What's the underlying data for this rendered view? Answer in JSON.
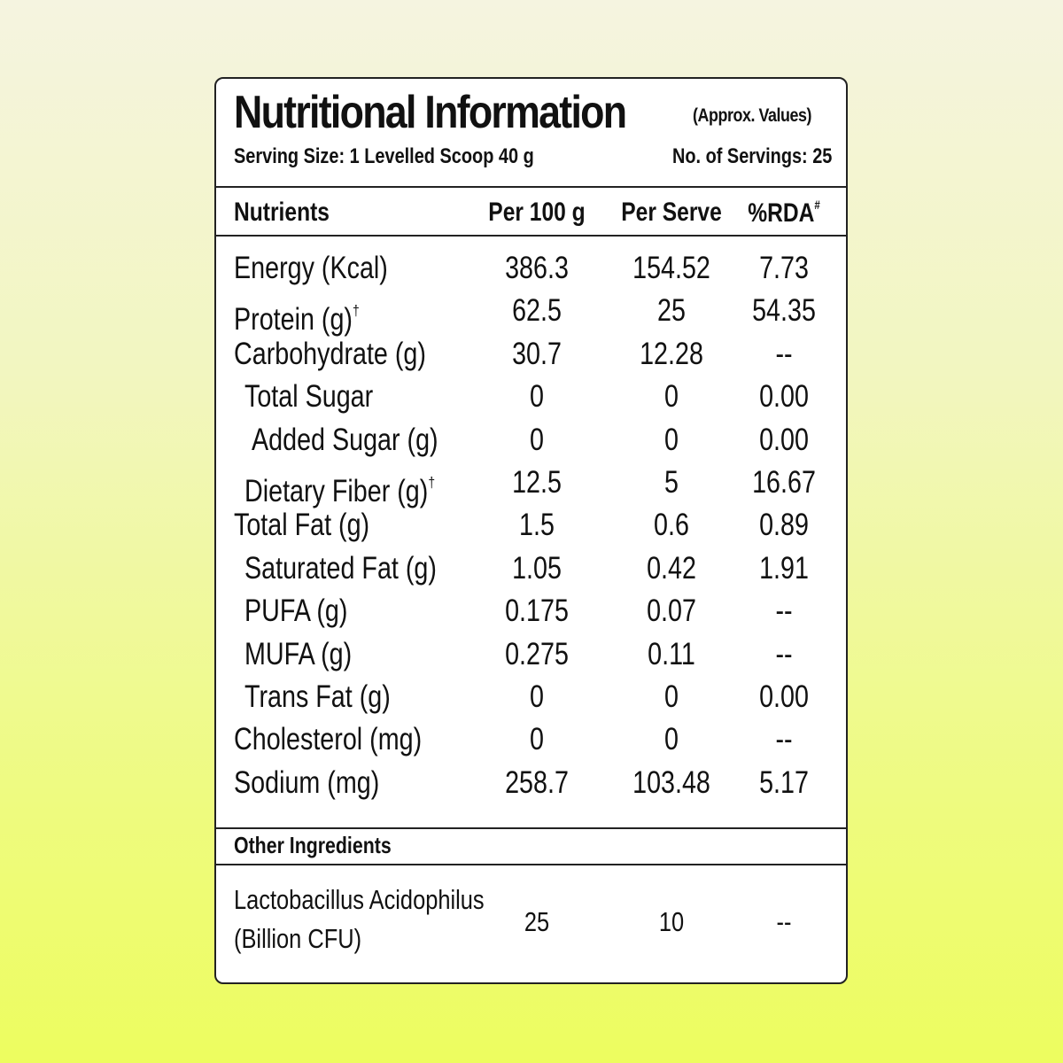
{
  "title": "Nutritional Information",
  "approx_note": "(Approx. Values)",
  "serving_size": "Serving Size: 1 Levelled Scoop 40 g",
  "servings_count": "No. of Servings: 25",
  "columns": {
    "nutrients": "Nutrients",
    "per_100g": "Per 100 g",
    "per_serve": "Per Serve",
    "rda": "%RDA",
    "rda_mark": "#"
  },
  "rows": [
    {
      "name": "Energy (Kcal)",
      "mark": "",
      "indent": 0,
      "per_100g": "386.3",
      "per_serve": "154.52",
      "rda": "7.73"
    },
    {
      "name": "Protein (g)",
      "mark": "†",
      "indent": 0,
      "per_100g": "62.5",
      "per_serve": "25",
      "rda": "54.35"
    },
    {
      "name": "Carbohydrate (g)",
      "mark": "",
      "indent": 0,
      "per_100g": "30.7",
      "per_serve": "12.28",
      "rda": "--"
    },
    {
      "name": "Total Sugar",
      "mark": "",
      "indent": 1,
      "per_100g": "0",
      "per_serve": "0",
      "rda": "0.00"
    },
    {
      "name": "Added Sugar (g)",
      "mark": "",
      "indent": 2,
      "per_100g": "0",
      "per_serve": "0",
      "rda": "0.00"
    },
    {
      "name": "Dietary Fiber (g)",
      "mark": "†",
      "indent": 1,
      "per_100g": "12.5",
      "per_serve": "5",
      "rda": "16.67"
    },
    {
      "name": "Total Fat (g)",
      "mark": "",
      "indent": 0,
      "per_100g": "1.5",
      "per_serve": "0.6",
      "rda": "0.89"
    },
    {
      "name": "Saturated Fat (g)",
      "mark": "",
      "indent": 1,
      "per_100g": "1.05",
      "per_serve": "0.42",
      "rda": "1.91"
    },
    {
      "name": "PUFA (g)",
      "mark": "",
      "indent": 1,
      "per_100g": "0.175",
      "per_serve": "0.07",
      "rda": "--"
    },
    {
      "name": "MUFA (g)",
      "mark": "",
      "indent": 1,
      "per_100g": "0.275",
      "per_serve": "0.11",
      "rda": "--"
    },
    {
      "name": "Trans Fat (g)",
      "mark": "",
      "indent": 1,
      "per_100g": "0",
      "per_serve": "0",
      "rda": "0.00"
    },
    {
      "name": "Cholesterol (mg)",
      "mark": "",
      "indent": 0,
      "per_100g": "0",
      "per_serve": "0",
      "rda": "--"
    },
    {
      "name": "Sodium (mg)",
      "mark": "",
      "indent": 0,
      "per_100g": "258.7",
      "per_serve": "103.48",
      "rda": "5.17"
    }
  ],
  "other_ingredients": {
    "title": "Other Ingredients",
    "name_line1": "Lactobacillus Acidophilus",
    "name_line2": "(Billion CFU)",
    "per_100g": "25",
    "per_serve": "10",
    "rda": "--"
  }
}
